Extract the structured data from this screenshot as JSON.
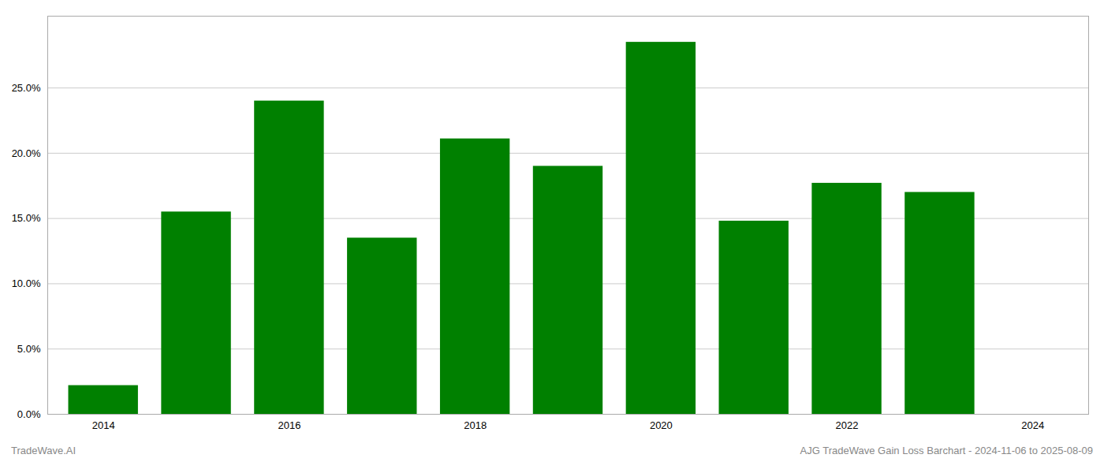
{
  "chart_data": {
    "type": "bar",
    "x": [
      2014,
      2015,
      2016,
      2017,
      2018,
      2019,
      2020,
      2021,
      2022,
      2023
    ],
    "values": [
      0.022,
      0.155,
      0.24,
      0.135,
      0.211,
      0.19,
      0.285,
      0.148,
      0.177,
      0.17
    ],
    "color": "#008000",
    "xlim": [
      2013.4,
      2024.6
    ],
    "xticks": [
      2014,
      2016,
      2018,
      2020,
      2022,
      2024
    ],
    "ylim": [
      0,
      0.305
    ],
    "yticks": [
      {
        "value": 0.0,
        "label": "0.0%"
      },
      {
        "value": 0.05,
        "label": "5.0%"
      },
      {
        "value": 0.1,
        "label": "10.0%"
      },
      {
        "value": 0.15,
        "label": "15.0%"
      },
      {
        "value": 0.2,
        "label": "20.0%"
      },
      {
        "value": 0.25,
        "label": "25.0%"
      }
    ],
    "grid": true,
    "annotations": [
      "TradeWave.AI",
      "AJG TradeWave Gain Loss Barchart - 2024-11-06 to 2025-08-09"
    ]
  }
}
